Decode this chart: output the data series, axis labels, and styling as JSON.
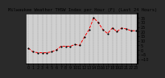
{
  "title": "Milwaukee Weather THSW Index per Hour (F) (Last 24 Hours)",
  "bg_color": "#888888",
  "plot_bg_color": "#c8c8c8",
  "outer_bg_color": "#444444",
  "line_color": "#ff0000",
  "marker_color": "#000000",
  "border_color": "#000000",
  "hours": [
    0,
    1,
    2,
    3,
    4,
    5,
    6,
    7,
    8,
    9,
    10,
    11,
    12,
    13,
    14,
    15,
    16,
    17,
    18,
    19,
    20,
    21,
    22,
    23
  ],
  "values": [
    2,
    -2,
    -3,
    -3,
    -3,
    -2,
    0,
    4,
    4,
    4,
    6,
    5,
    14,
    22,
    35,
    30,
    22,
    18,
    24,
    20,
    24,
    23,
    21,
    21
  ],
  "ylim": [
    -15,
    40
  ],
  "yticks": [
    -10,
    -5,
    0,
    5,
    10,
    15,
    20,
    25,
    30,
    35
  ],
  "xlabel_fontsize": 3.5,
  "ylabel_fontsize": 3.5,
  "title_fontsize": 4.0,
  "line_width": 0.7,
  "marker_size": 1.2,
  "grid_color": "#606060",
  "spine_color": "#000000",
  "title_color": "#000000",
  "tick_color": "#000000",
  "xtick_labels": [
    "0",
    "1",
    "2",
    "3",
    "4",
    "5",
    "6",
    "7",
    "8",
    "9",
    "10",
    "11",
    "12",
    "13",
    "14",
    "15",
    "16",
    "17",
    "18",
    "19",
    "20",
    "21",
    "22",
    "23"
  ]
}
